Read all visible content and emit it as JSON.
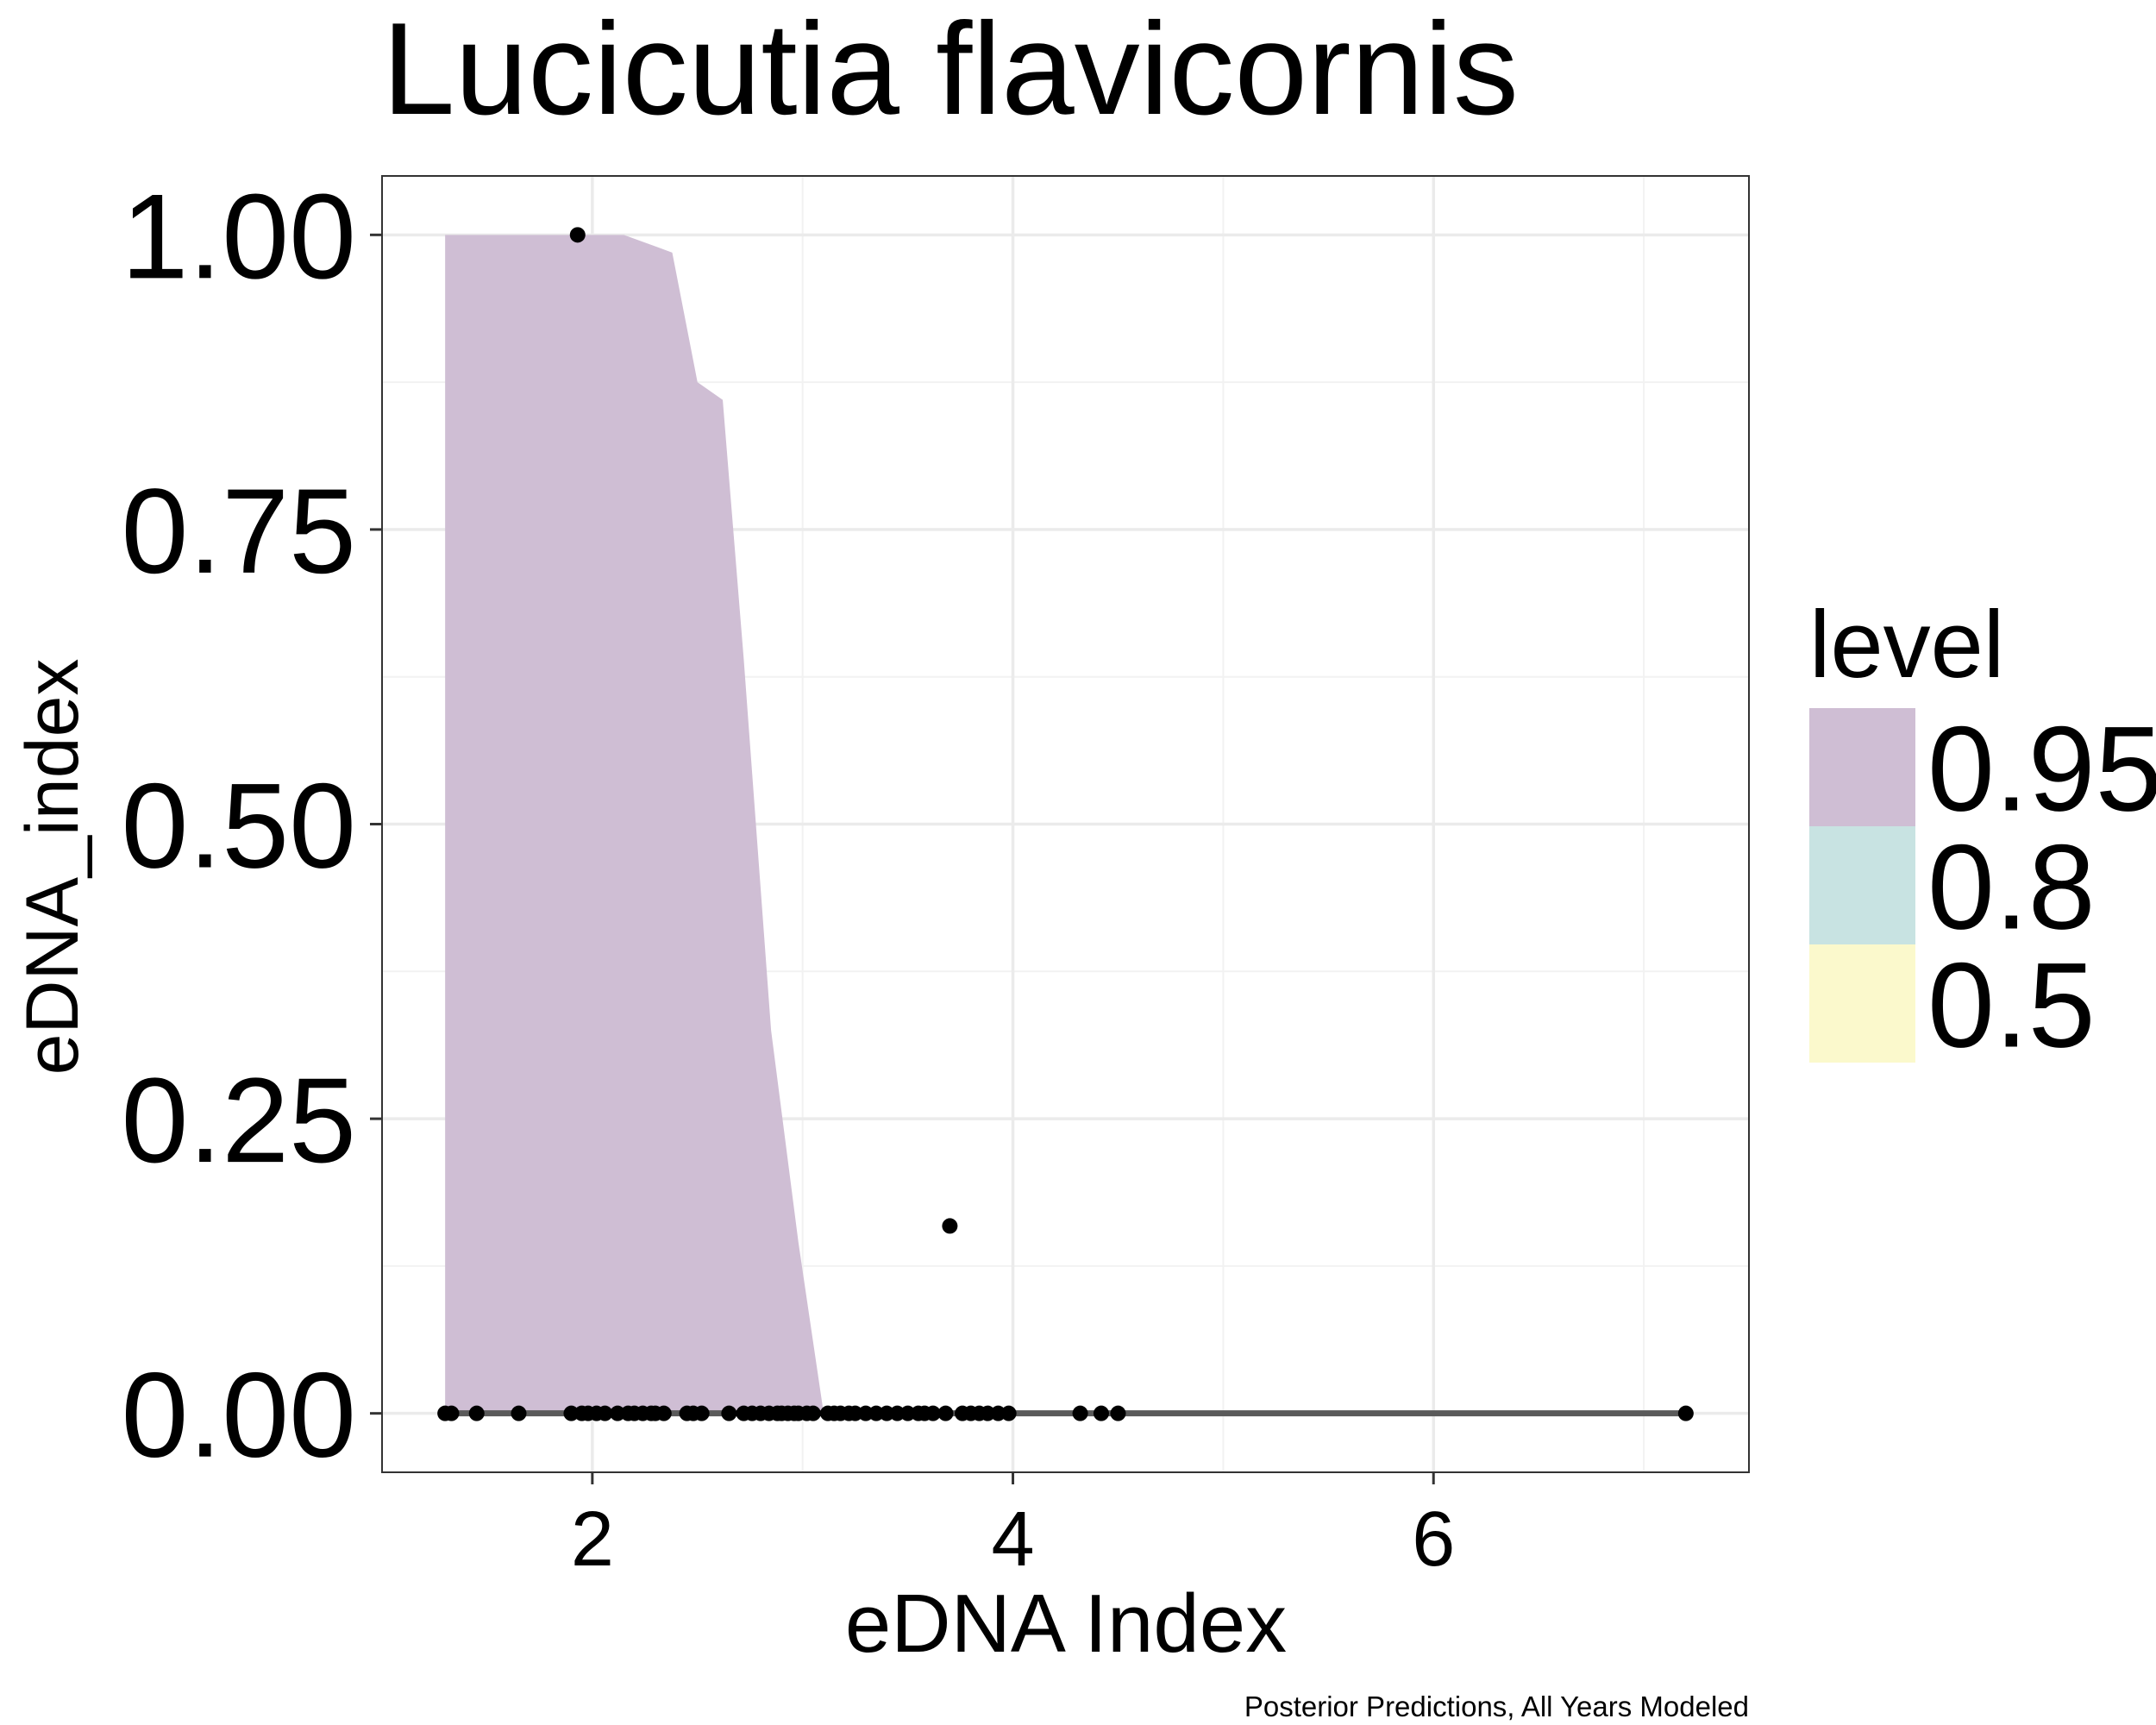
{
  "chart_data": {
    "type": "area",
    "title": "Lucicutia flavicornis",
    "xlabel": "eDNA Index",
    "ylabel": "eDNA_index",
    "caption": "Posterior Predictions, All Years Modeled",
    "xlim": [
      1.0,
      7.5
    ],
    "ylim": [
      -0.05,
      1.05
    ],
    "x_ticks": [
      2,
      4,
      6
    ],
    "x_tick_labels": [
      "2",
      "4",
      "6"
    ],
    "y_ticks": [
      0,
      0.25,
      0.5,
      0.75,
      1.0
    ],
    "y_tick_labels": [
      "0.00",
      "0.25",
      "0.50",
      "0.75",
      "1.00"
    ],
    "grid": true,
    "legend": {
      "title": "level",
      "placement": "right",
      "entries": [
        {
          "label": "0.95",
          "color": "#cfbed4"
        },
        {
          "label": "0.8",
          "color": "#c8e3e2"
        },
        {
          "label": "0.5",
          "color": "#fbf9cc"
        }
      ]
    },
    "series": [
      {
        "kind": "ribbon",
        "level": "0.95",
        "color": "#cfbed4",
        "x": [
          1.3,
          2.15,
          2.38,
          2.5,
          2.62,
          2.72,
          2.85,
          2.98,
          3.1
        ],
        "upper": [
          1.0,
          1.0,
          0.985,
          0.875,
          0.86,
          0.64,
          0.325,
          0.145,
          0.0
        ],
        "lower": [
          0,
          0,
          0,
          0,
          0,
          0,
          0,
          0,
          0
        ]
      },
      {
        "kind": "median_line",
        "color": "#5a5a5a",
        "x": [
          1.3,
          7.2
        ],
        "y": [
          0,
          0
        ]
      },
      {
        "kind": "observed_points",
        "color": "#000000",
        "points": [
          [
            1.3,
            0
          ],
          [
            1.33,
            0
          ],
          [
            1.45,
            0
          ],
          [
            1.65,
            0
          ],
          [
            1.9,
            0
          ],
          [
            1.93,
            1.0
          ],
          [
            1.95,
            0
          ],
          [
            1.98,
            0
          ],
          [
            2.02,
            0
          ],
          [
            2.06,
            0
          ],
          [
            2.12,
            0
          ],
          [
            2.17,
            0
          ],
          [
            2.2,
            0
          ],
          [
            2.24,
            0
          ],
          [
            2.28,
            0
          ],
          [
            2.3,
            0
          ],
          [
            2.34,
            0
          ],
          [
            2.45,
            0
          ],
          [
            2.48,
            0
          ],
          [
            2.52,
            0
          ],
          [
            2.65,
            0
          ],
          [
            2.72,
            0
          ],
          [
            2.76,
            0
          ],
          [
            2.8,
            0
          ],
          [
            2.84,
            0
          ],
          [
            2.88,
            0
          ],
          [
            2.9,
            0
          ],
          [
            2.93,
            0
          ],
          [
            2.96,
            0
          ],
          [
            2.98,
            0
          ],
          [
            3.02,
            0
          ],
          [
            3.05,
            0
          ],
          [
            3.12,
            0
          ],
          [
            3.15,
            0
          ],
          [
            3.18,
            0
          ],
          [
            3.22,
            0
          ],
          [
            3.25,
            0
          ],
          [
            3.3,
            0
          ],
          [
            3.35,
            0
          ],
          [
            3.4,
            0
          ],
          [
            3.45,
            0
          ],
          [
            3.5,
            0
          ],
          [
            3.55,
            0
          ],
          [
            3.58,
            0
          ],
          [
            3.62,
            0
          ],
          [
            3.68,
            0
          ],
          [
            3.7,
            0.159
          ],
          [
            3.76,
            0
          ],
          [
            3.8,
            0
          ],
          [
            3.84,
            0
          ],
          [
            3.88,
            0
          ],
          [
            3.93,
            0
          ],
          [
            3.98,
            0
          ],
          [
            4.32,
            0
          ],
          [
            4.42,
            0
          ],
          [
            4.5,
            0
          ],
          [
            7.2,
            0
          ]
        ]
      }
    ]
  }
}
